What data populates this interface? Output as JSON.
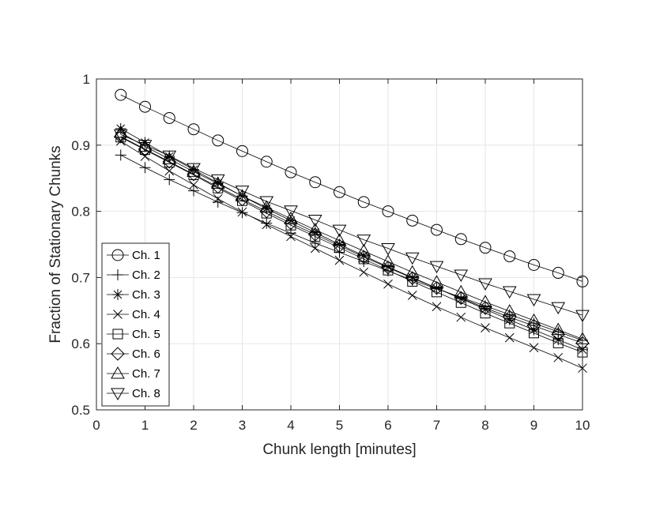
{
  "chart_data": {
    "type": "line",
    "xlabel": "Chunk length [minutes]",
    "ylabel": "Fraction of Stationary Chunks",
    "xlim": [
      0,
      10
    ],
    "ylim": [
      0.5,
      1
    ],
    "x_ticks": [
      "0",
      "1",
      "2",
      "3",
      "4",
      "5",
      "6",
      "7",
      "8",
      "9",
      "10"
    ],
    "y_ticks": [
      "0.5",
      "0.6",
      "0.7",
      "0.8",
      "0.9",
      "1"
    ],
    "grid": true,
    "legend_position": "bottom-left",
    "line_color": "#000000",
    "x": [
      0.5,
      1,
      1.5,
      2,
      2.5,
      3,
      3.5,
      4,
      4.5,
      5,
      5.5,
      6,
      6.5,
      7,
      7.5,
      8,
      8.5,
      9,
      9.5,
      10
    ],
    "series": [
      {
        "name": "Ch. 1",
        "marker": "circle",
        "values": [
          0.976,
          0.958,
          0.941,
          0.924,
          0.907,
          0.891,
          0.875,
          0.859,
          0.844,
          0.829,
          0.814,
          0.8,
          0.786,
          0.772,
          0.758,
          0.745,
          0.732,
          0.719,
          0.707,
          0.694
        ]
      },
      {
        "name": "Ch. 2",
        "marker": "plus",
        "values": [
          0.885,
          0.866,
          0.848,
          0.831,
          0.814,
          0.798,
          0.782,
          0.767,
          0.752,
          0.738,
          0.724,
          0.71,
          0.696,
          0.683,
          0.67,
          0.657,
          0.644,
          0.631,
          0.618,
          0.605
        ]
      },
      {
        "name": "Ch. 3",
        "marker": "asterisk",
        "values": [
          0.925,
          0.904,
          0.883,
          0.863,
          0.843,
          0.823,
          0.804,
          0.786,
          0.768,
          0.75,
          0.733,
          0.716,
          0.7,
          0.684,
          0.668,
          0.652,
          0.636,
          0.621,
          0.606,
          0.591
        ]
      },
      {
        "name": "Ch. 4",
        "marker": "x",
        "values": [
          0.906,
          0.883,
          0.861,
          0.84,
          0.819,
          0.799,
          0.78,
          0.762,
          0.744,
          0.726,
          0.708,
          0.69,
          0.673,
          0.656,
          0.64,
          0.624,
          0.609,
          0.594,
          0.579,
          0.563
        ]
      },
      {
        "name": "Ch. 5",
        "marker": "square",
        "values": [
          0.912,
          0.893,
          0.874,
          0.855,
          0.835,
          0.816,
          0.797,
          0.779,
          0.762,
          0.745,
          0.728,
          0.711,
          0.694,
          0.678,
          0.662,
          0.646,
          0.631,
          0.616,
          0.601,
          0.587
        ]
      },
      {
        "name": "Ch. 6",
        "marker": "diamond",
        "values": [
          0.913,
          0.894,
          0.875,
          0.856,
          0.837,
          0.818,
          0.8,
          0.782,
          0.765,
          0.748,
          0.731,
          0.715,
          0.699,
          0.684,
          0.669,
          0.654,
          0.64,
          0.627,
          0.614,
          0.601
        ]
      },
      {
        "name": "Ch. 7",
        "marker": "triangle-up",
        "values": [
          0.919,
          0.898,
          0.879,
          0.86,
          0.842,
          0.823,
          0.806,
          0.789,
          0.772,
          0.756,
          0.74,
          0.724,
          0.708,
          0.693,
          0.678,
          0.663,
          0.649,
          0.635,
          0.621,
          0.607
        ]
      },
      {
        "name": "Ch. 8",
        "marker": "triangle-down",
        "values": [
          0.916,
          0.9,
          0.884,
          0.865,
          0.848,
          0.831,
          0.815,
          0.801,
          0.787,
          0.772,
          0.757,
          0.744,
          0.73,
          0.717,
          0.704,
          0.691,
          0.679,
          0.667,
          0.655,
          0.643
        ]
      }
    ]
  }
}
